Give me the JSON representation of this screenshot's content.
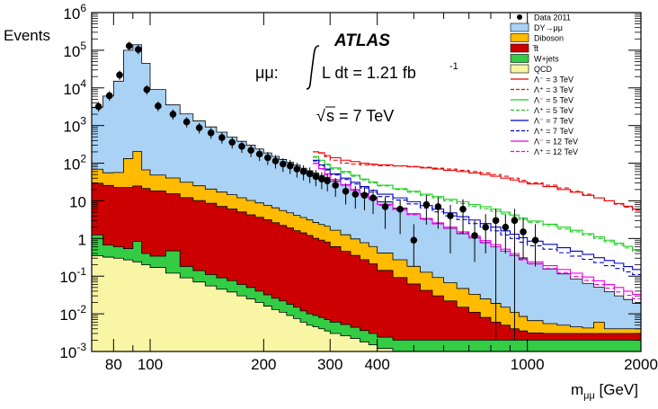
{
  "chart_data": {
    "type": "histogram",
    "ylabel": "Events",
    "xlabel": "m_{μμ} [GeV]",
    "xlabel_main": "m",
    "xlabel_sub": "μμ",
    "xlabel_unit": "[GeV]",
    "xscale": "log",
    "yscale": "log",
    "xlim": [
      70,
      2000
    ],
    "ylim": [
      0.001,
      1000000
    ],
    "x_ticks": [
      80,
      100,
      200,
      300,
      400,
      1000,
      2000
    ],
    "y_ticks": [
      {
        "base": "10",
        "exp": "6",
        "value": 1000000
      },
      {
        "base": "10",
        "exp": "5",
        "value": 100000
      },
      {
        "base": "10",
        "exp": "4",
        "value": 10000
      },
      {
        "base": "10",
        "exp": "3",
        "value": 1000
      },
      {
        "base": "10",
        "exp": "2",
        "value": 100
      },
      {
        "base": "10",
        "exp": "",
        "value": 10
      },
      {
        "base": "1",
        "exp": "",
        "value": 1
      },
      {
        "base": "10",
        "exp": "-1",
        "value": 0.1
      },
      {
        "base": "10",
        "exp": "-2",
        "value": 0.01
      },
      {
        "base": "10",
        "exp": "-3",
        "value": 0.001
      }
    ],
    "annotations": {
      "experiment": "ATLAS",
      "lumi_prefix": "μμ:",
      "lumi_text": "L dt = 1.21 fb",
      "lumi_exp": "-1",
      "energy_sqrt": "√",
      "energy_text": "s = 7 TeV"
    },
    "bin_edges": [
      70,
      75,
      80,
      85,
      90,
      95,
      100,
      110,
      120,
      130,
      140,
      150,
      160,
      170,
      180,
      190,
      200,
      210,
      220,
      230,
      240,
      250,
      260,
      270,
      280,
      290,
      300,
      320,
      340,
      360,
      380,
      400,
      440,
      480,
      520,
      560,
      600,
      650,
      700,
      750,
      800,
      850,
      900,
      950,
      1000,
      1100,
      1200,
      1300,
      1400,
      1500,
      1600,
      1700,
      1800,
      1900,
      2000
    ],
    "stack": [
      {
        "name": "QCD",
        "color": "#f8f6a4",
        "values": [
          0.35,
          0.32,
          0.3,
          0.27,
          0.24,
          0.2,
          0.17,
          0.12,
          0.09,
          0.07,
          0.055,
          0.045,
          0.038,
          0.03,
          0.025,
          0.02,
          0.016,
          0.013,
          0.011,
          0.009,
          0.0075,
          0.006,
          0.005,
          0.0045,
          0.004,
          0.0035,
          0.003,
          0.0026,
          0.0022,
          0.0018,
          0.0015,
          0.0012,
          0.001,
          0.001,
          0.001,
          0.001,
          0.001,
          0.001,
          0.001,
          0.001,
          0.001,
          0.001,
          0.001,
          0.001,
          0.001,
          0.001,
          0.001,
          0.001,
          0.001,
          0.001,
          0.001,
          0.001,
          0.001,
          0.001
        ]
      },
      {
        "name": "W+jets",
        "color": "#33cc44",
        "values": [
          0.9,
          0.35,
          0.3,
          0.27,
          0.6,
          0.2,
          0.17,
          0.35,
          0.09,
          0.07,
          0.055,
          0.045,
          0.038,
          0.03,
          0.025,
          0.02,
          0.016,
          0.013,
          0.011,
          0.009,
          0.0075,
          0.006,
          0.005,
          0.0045,
          0.004,
          0.0035,
          0.003,
          0.0026,
          0.0022,
          0.0018,
          0.0015,
          0.0012,
          0.001,
          0.001,
          0.001,
          0.001,
          0.001,
          0.001,
          0.001,
          0.001,
          0.001,
          0.001,
          0.001,
          0.001,
          0.001,
          0.001,
          0.001,
          0.001,
          0.001,
          0.001,
          0.001,
          0.001,
          0.001,
          0.001
        ]
      },
      {
        "name": "t̅t",
        "color": "#cc0000",
        "values": [
          28,
          25,
          22,
          22,
          24,
          21,
          18,
          15,
          12,
          10,
          8.5,
          7,
          6,
          5,
          4.2,
          3.6,
          3.1,
          2.6,
          2.2,
          1.9,
          1.6,
          1.4,
          1.2,
          1.0,
          0.9,
          0.8,
          0.6,
          0.45,
          0.35,
          0.27,
          0.21,
          0.14,
          0.09,
          0.06,
          0.04,
          0.028,
          0.02,
          0.013,
          0.009,
          0.006,
          0.004,
          0.003,
          0.002,
          0.0015,
          0.0011,
          0.001,
          0.001,
          0.001,
          0.001,
          0.001,
          0.001,
          0.001,
          0.001,
          0.001
        ]
      },
      {
        "name": "Diboson",
        "color": "#ffbb00",
        "values": [
          40,
          30,
          34,
          110,
          180,
          45,
          30,
          25,
          19,
          15,
          12,
          10,
          8.5,
          7,
          6,
          5.2,
          4.5,
          3.9,
          3.3,
          2.9,
          2.5,
          2.2,
          1.9,
          1.65,
          1.45,
          1.3,
          1.05,
          0.8,
          0.62,
          0.5,
          0.4,
          0.27,
          0.18,
          0.12,
          0.085,
          0.062,
          0.045,
          0.032,
          0.022,
          0.017,
          0.013,
          0.01,
          0.007,
          0.005,
          0.0035,
          0.0025,
          0.002,
          0.0015,
          0.0012,
          0.003,
          0.001,
          0.001,
          0.001,
          0.001
        ]
      },
      {
        "name": "DY→μμ",
        "color": "#a9d2f5",
        "values": [
          3000,
          6000,
          15000,
          100000,
          140000,
          45000,
          9000,
          3500,
          2000,
          1300,
          900,
          650,
          480,
          370,
          290,
          230,
          180,
          145,
          120,
          100,
          85,
          70,
          60,
          52,
          45,
          40,
          32,
          25,
          19,
          15,
          12,
          9,
          6.2,
          4.4,
          3.2,
          2.4,
          1.8,
          1.3,
          1.0,
          0.75,
          0.58,
          0.45,
          0.35,
          0.28,
          0.21,
          0.15,
          0.11,
          0.08,
          0.06,
          0.045,
          0.035,
          0.026,
          0.02,
          0.015
        ]
      }
    ],
    "data": {
      "name": "Data 2011",
      "points": [
        [
          73,
          3200
        ],
        [
          78,
          6200
        ],
        [
          83,
          22000
        ],
        [
          88,
          130000
        ],
        [
          93,
          105000
        ],
        [
          98,
          9000
        ],
        [
          105,
          3300
        ],
        [
          115,
          2000
        ],
        [
          125,
          1250
        ],
        [
          135,
          870
        ],
        [
          145,
          640
        ],
        [
          155,
          480
        ],
        [
          165,
          360
        ],
        [
          175,
          280
        ],
        [
          185,
          220
        ],
        [
          195,
          175
        ],
        [
          205,
          140
        ],
        [
          215,
          115
        ],
        [
          225,
          95
        ],
        [
          235,
          85
        ],
        [
          245,
          70
        ],
        [
          255,
          60
        ],
        [
          265,
          52
        ],
        [
          275,
          44
        ],
        [
          285,
          38
        ],
        [
          295,
          34
        ],
        [
          310,
          26
        ],
        [
          330,
          18
        ],
        [
          350,
          15
        ],
        [
          370,
          14
        ],
        [
          390,
          12
        ],
        [
          420,
          7
        ],
        [
          460,
          6
        ],
        [
          500,
          0.9
        ],
        [
          540,
          8
        ],
        [
          580,
          7
        ],
        [
          625,
          4
        ],
        [
          675,
          6
        ],
        [
          725,
          1.2
        ],
        [
          775,
          2
        ],
        [
          825,
          3
        ],
        [
          875,
          2
        ],
        [
          925,
          3
        ],
        [
          975,
          1.5
        ],
        [
          1050,
          0.9
        ]
      ]
    },
    "signals": [
      {
        "name": "Λ⁻ = 3 TeV",
        "color": "#ee0000",
        "dash": "solid",
        "values": [
          200,
          190,
          160,
          140,
          120,
          110,
          100,
          95,
          90,
          85,
          80,
          75,
          70,
          65,
          60,
          55,
          50,
          45,
          40,
          36,
          32,
          28,
          24,
          20,
          17,
          14,
          12,
          10,
          8.5,
          7.2,
          6.0,
          5.0
        ]
      },
      {
        "name": "Λ⁺ = 3 TeV",
        "color": "#ee0000",
        "dash": "dashed",
        "values": [
          200,
          185,
          150,
          120,
          100,
          95,
          90,
          88,
          86,
          84,
          82,
          78,
          74,
          70,
          65,
          60,
          55,
          50,
          45,
          40,
          35,
          30,
          26,
          22,
          18,
          15,
          12,
          10,
          8.2,
          6.8,
          5.6,
          4.6
        ]
      },
      {
        "name": "Λ⁻ = 5 TeV",
        "color": "#22cc22",
        "dash": "solid",
        "values": [
          150,
          120,
          95,
          75,
          60,
          48,
          38,
          32,
          26,
          21,
          18,
          15,
          13,
          11,
          9.5,
          8.0,
          7.0,
          6.0,
          5.0,
          4.2,
          3.5,
          2.9,
          2.4,
          2.0,
          1.65,
          1.35,
          1.1,
          0.9,
          0.75,
          0.62,
          0.5,
          0.42
        ]
      },
      {
        "name": "Λ⁺ = 5 TeV",
        "color": "#22cc22",
        "dash": "dashed",
        "values": [
          145,
          115,
          90,
          70,
          56,
          45,
          36,
          30,
          25,
          20,
          17,
          14,
          12,
          10,
          8.5,
          7.2,
          6.2,
          5.3,
          4.5,
          3.8,
          3.2,
          2.7,
          2.2,
          1.8,
          1.5,
          1.25,
          1.0,
          0.82,
          0.68,
          0.56,
          0.46,
          0.38
        ]
      },
      {
        "name": "Λ⁻ = 7 TeV",
        "color": "#0000cc",
        "dash": "solid",
        "values": [
          120,
          90,
          70,
          52,
          40,
          31,
          24,
          19,
          15,
          12,
          9.5,
          7.5,
          6.0,
          4.8,
          3.8,
          3.1,
          2.5,
          2.0,
          1.6,
          1.3,
          1.05,
          0.85,
          0.7,
          0.57,
          0.46,
          0.38,
          0.31,
          0.26,
          0.22,
          0.18,
          0.15,
          0.13
        ]
      },
      {
        "name": "Λ⁺ = 7 TeV",
        "color": "#0000cc",
        "dash": "dashed",
        "values": [
          115,
          86,
          66,
          49,
          37,
          28,
          22,
          17,
          13,
          10.5,
          8.3,
          6.5,
          5.1,
          4.0,
          3.2,
          2.5,
          2.0,
          1.6,
          1.25,
          1.0,
          0.8,
          0.64,
          0.52,
          0.42,
          0.34,
          0.28,
          0.23,
          0.19,
          0.16,
          0.13,
          0.11,
          0.09
        ]
      },
      {
        "name": "Λ⁻ = 12 TeV",
        "color": "#ee00ee",
        "dash": "solid",
        "values": [
          100,
          72,
          52,
          37,
          27,
          20,
          15,
          11,
          8.0,
          6.0,
          4.5,
          3.4,
          2.6,
          2.0,
          1.5,
          1.15,
          0.88,
          0.68,
          0.52,
          0.4,
          0.31,
          0.24,
          0.19,
          0.15,
          0.12,
          0.095,
          0.075,
          0.06,
          0.05,
          0.04,
          0.033,
          0.028
        ]
      },
      {
        "name": "Λ⁺ = 12 TeV",
        "color": "#ee00ee",
        "dash": "dashed",
        "values": [
          98,
          70,
          50,
          36,
          26,
          19,
          14,
          10.5,
          7.6,
          5.7,
          4.3,
          3.2,
          2.45,
          1.85,
          1.4,
          1.05,
          0.8,
          0.6,
          0.46,
          0.35,
          0.27,
          0.21,
          0.16,
          0.125,
          0.098,
          0.077,
          0.06,
          0.048,
          0.038,
          0.031,
          0.025,
          0.021
        ]
      }
    ],
    "signal_start_bin": 23,
    "legend": [
      {
        "label": "Data 2011",
        "kind": "marker"
      },
      {
        "label": "DY→μμ",
        "kind": "box",
        "color": "#a9d2f5"
      },
      {
        "label": "Diboson",
        "kind": "box",
        "color": "#ffbb00"
      },
      {
        "label": "t̅t",
        "kind": "box",
        "color": "#cc0000"
      },
      {
        "label": "W+jets",
        "kind": "box",
        "color": "#33cc44"
      },
      {
        "label": "QCD",
        "kind": "box",
        "color": "#f8f6a4"
      },
      {
        "label": "Λ⁻ = 3 TeV",
        "kind": "line",
        "color": "#ee0000",
        "dash": "solid"
      },
      {
        "label": "Λ⁺ = 3 TeV",
        "kind": "line",
        "color": "#ee0000",
        "dash": "dashed"
      },
      {
        "label": "Λ⁻ = 5 TeV",
        "kind": "line",
        "color": "#22cc22",
        "dash": "solid"
      },
      {
        "label": "Λ⁺ = 5 TeV",
        "kind": "line",
        "color": "#22cc22",
        "dash": "dashed"
      },
      {
        "label": "Λ⁻ = 7 TeV",
        "kind": "line",
        "color": "#0000cc",
        "dash": "solid"
      },
      {
        "label": "Λ⁺ = 7 TeV",
        "kind": "line",
        "color": "#0000cc",
        "dash": "dashed"
      },
      {
        "label": "Λ⁻ = 12 TeV",
        "kind": "line",
        "color": "#ee00ee",
        "dash": "solid"
      },
      {
        "label": "Λ⁺ = 12 TeV",
        "kind": "line",
        "color": "#ee00ee",
        "dash": "dashed"
      }
    ],
    "legend_position": "top-right",
    "grid": false
  }
}
